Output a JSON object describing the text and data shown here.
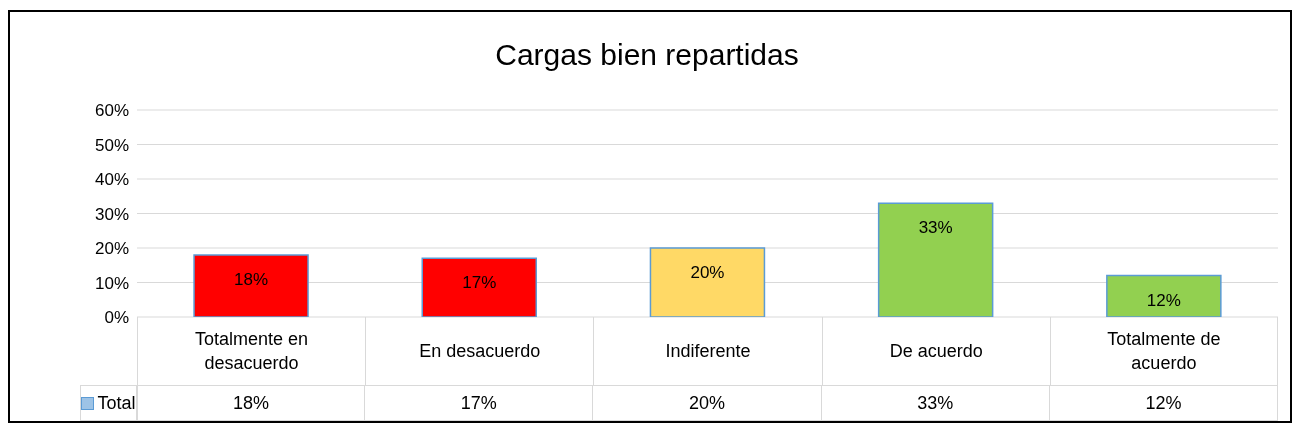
{
  "chart_data": {
    "type": "bar",
    "title": "Cargas bien repartidas",
    "categories": [
      "Totalmente en desacuerdo",
      "En desacuerdo",
      "Indiferente",
      "De acuerdo",
      "Totalmente de acuerdo"
    ],
    "series": [
      {
        "name": "Total",
        "color": "#5b9bd5",
        "colors": [
          "#ff0000",
          "#ff0000",
          "#ffd966",
          "#92d050",
          "#92d050"
        ],
        "values": [
          18,
          17,
          20,
          33,
          12
        ],
        "value_labels": [
          "18%",
          "17%",
          "20%",
          "33%",
          "12%"
        ]
      }
    ],
    "ylim": [
      0,
      60
    ],
    "yticks": [
      {
        "value": 0,
        "label": "0%"
      },
      {
        "value": 10,
        "label": "10%"
      },
      {
        "value": 20,
        "label": "20%"
      },
      {
        "value": 30,
        "label": "30%"
      },
      {
        "value": 40,
        "label": "40%"
      },
      {
        "value": 50,
        "label": "50%"
      },
      {
        "value": 60,
        "label": "60%"
      }
    ],
    "grid": "y",
    "legend": "bottom"
  }
}
